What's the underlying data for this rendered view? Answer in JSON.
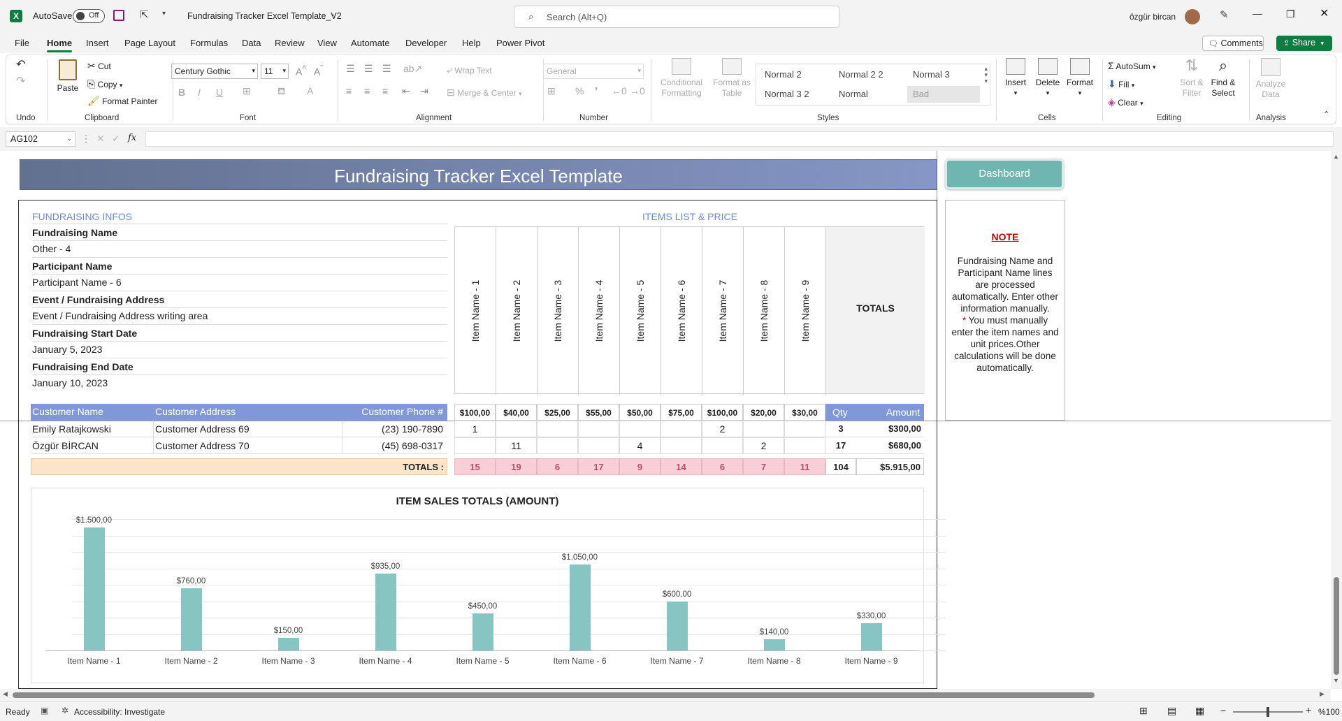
{
  "titlebar": {
    "autosave_label": "AutoSave",
    "autosave_state": "Off",
    "doc_title": "Fundraising Tracker Excel Template_V2",
    "search_placeholder": "Search (Alt+Q)",
    "user_name": "özgür bircan"
  },
  "ribbon_tabs": [
    "File",
    "Home",
    "Insert",
    "Page Layout",
    "Formulas",
    "Data",
    "Review",
    "View",
    "Automate",
    "Developer",
    "Help",
    "Power Pivot"
  ],
  "ribbon_right": {
    "comments": "Comments",
    "share": "Share"
  },
  "ribbon": {
    "undo_group": "Undo",
    "clipboard": {
      "paste": "Paste",
      "cut": "Cut",
      "copy": "Copy",
      "format_painter": "Format Painter",
      "group": "Clipboard"
    },
    "font": {
      "name": "Century Gothic",
      "size": "11",
      "group": "Font"
    },
    "alignment": {
      "wrap": "Wrap Text",
      "merge": "Merge & Center",
      "group": "Alignment"
    },
    "number": {
      "format": "General",
      "group": "Number"
    },
    "styles": {
      "conditional": [
        "Conditional",
        "Formatting"
      ],
      "format_table": [
        "Format as",
        "Table"
      ],
      "cells": [
        "Normal 2",
        "Normal 2 2",
        "Normal 3",
        "Normal 3 2",
        "Normal",
        "Bad"
      ],
      "group": "Styles"
    },
    "cells": {
      "insert": "Insert",
      "delete": "Delete",
      "format": "Format",
      "group": "Cells"
    },
    "editing": {
      "autosum": "AutoSum",
      "fill": "Fill",
      "clear": "Clear",
      "sort": [
        "Sort &",
        "Filter"
      ],
      "find": [
        "Find &",
        "Select"
      ],
      "group": "Editing"
    },
    "analysis": {
      "analyze": [
        "Analyze",
        "Data"
      ],
      "group": "Analysis"
    }
  },
  "formula_bar": {
    "name_box": "AG102",
    "fx": "fx",
    "value": ""
  },
  "sheet": {
    "banner_title": "Fundraising Tracker Excel Template",
    "dashboard_button": "Dashboard",
    "infos_header": "FUNDRAISING INFOS",
    "items_header": "ITEMS LIST & PRICE",
    "fields": [
      {
        "label": "Fundraising Name",
        "value": "Other - 4"
      },
      {
        "label": "Participant Name",
        "value": "Participant Name - 6"
      },
      {
        "label": "Event / Fundraising Address",
        "value": "Event / Fundraising Address writing area"
      },
      {
        "label": "Fundraising Start Date",
        "value": "January 5, 2023"
      },
      {
        "label": "Fundraising End Date",
        "value": "January 10, 2023"
      }
    ],
    "items": [
      "Item Name - 1",
      "Item Name - 2",
      "Item Name - 3",
      "Item Name - 4",
      "Item Name - 5",
      "Item Name - 6",
      "Item Name - 7",
      "Item Name - 8",
      "Item Name - 9"
    ],
    "totals_label": "TOTALS",
    "prices": [
      "$100,00",
      "$40,00",
      "$25,00",
      "$55,00",
      "$50,00",
      "$75,00",
      "$100,00",
      "$20,00",
      "$30,00"
    ],
    "table_headers": {
      "name": "Customer Name",
      "address": "Customer Address",
      "phone": "Customer Phone #",
      "qty": "Qty",
      "amount": "Amount"
    },
    "rows": [
      {
        "name": "Emily Ratajkowski",
        "address": "Customer Address 69",
        "phone": "(23) 190-7890",
        "qtys": [
          "1",
          "",
          "",
          "",
          "",
          "",
          "2",
          "",
          ""
        ],
        "qty": "3",
        "amount": "$300,00"
      },
      {
        "name": "Özgür BİRCAN",
        "address": "Customer Address 70",
        "phone": "(45) 698-0317",
        "qtys": [
          "",
          "11",
          "",
          "",
          "4",
          "",
          "",
          "2",
          ""
        ],
        "qty": "17",
        "amount": "$680,00"
      }
    ],
    "totals_row_label": "TOTALS :",
    "totals_qtys": [
      "15",
      "19",
      "6",
      "17",
      "9",
      "14",
      "6",
      "7",
      "11"
    ],
    "totals_qty": "104",
    "totals_amount": "$5.915,00",
    "note": {
      "title": "NOTE",
      "text1": "Fundraising Name and Participant Name lines are processed automatically. Enter other information manually.",
      "star": "*",
      "text2": " You must manually enter the item names and unit prices.Other calculations will be done automatically."
    }
  },
  "chart_data": {
    "type": "bar",
    "title": "ITEM SALES TOTALS (AMOUNT)",
    "categories": [
      "Item Name - 1",
      "Item Name - 2",
      "Item Name - 3",
      "Item Name - 4",
      "Item Name - 5",
      "Item Name - 6",
      "Item Name - 7",
      "Item Name - 8",
      "Item Name - 9"
    ],
    "values": [
      1500,
      760,
      150,
      935,
      450,
      1050,
      600,
      140,
      330
    ],
    "labels": [
      "$1.500,00",
      "$760,00",
      "$150,00",
      "$935,00",
      "$450,00",
      "$1.050,00",
      "$600,00",
      "$140,00",
      "$330,00"
    ],
    "ylim": [
      0,
      1600
    ],
    "grid": true,
    "color": "#86c5c2"
  },
  "status": {
    "ready": "Ready",
    "accessibility": "Accessibility: Investigate",
    "zoom": "%100"
  }
}
